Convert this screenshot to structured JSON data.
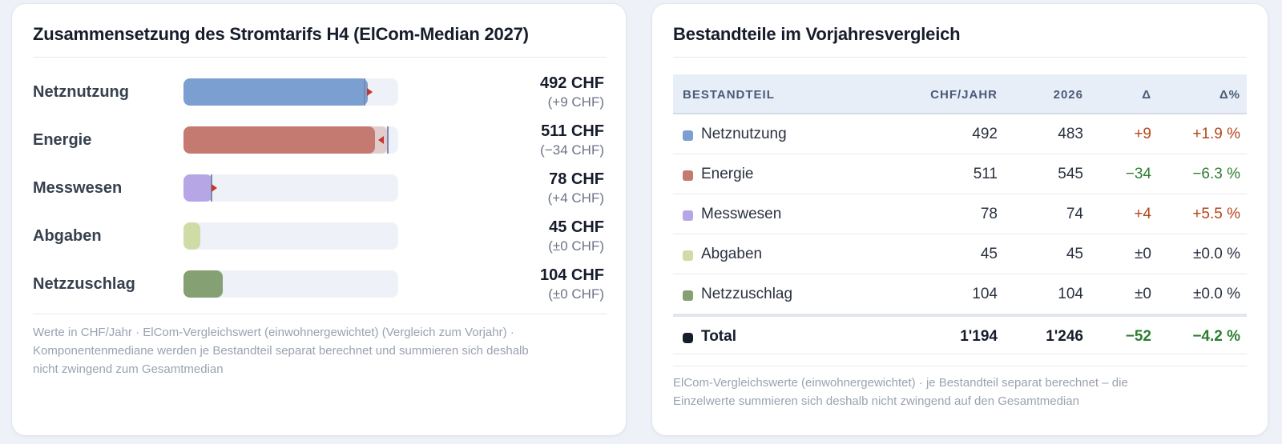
{
  "left": {
    "title": "Zusammensetzung des Stromtarifs H4 (ElCom-Median 2027)",
    "footnote_lines": [
      "Werte in CHF/Jahr · ElCom-Vergleichswert (einwohnergewichtet) (Vergleich zum Vorjahr) ·",
      "Komponentenmediane werden je Bestandteil separat berechnet und summieren sich deshalb",
      "nicht zwingend zum Gesamtmedian"
    ]
  },
  "right": {
    "title": "Bestandteile im Vorjahresvergleich",
    "headers": [
      "BESTANDTEIL",
      "CHF/JAHR",
      "2026",
      "Δ",
      "Δ%"
    ],
    "footnote_lines": [
      "ElCom-Vergleichswerte (einwohnergewichtet) · je Bestandteil separat berechnet – die",
      "Einzelwerte summieren sich deshalb nicht zwingend auf den Gesamtmedian"
    ],
    "total": {
      "label": "Total",
      "value": "1'194",
      "prev": "1'246",
      "delta": "−52",
      "delta_pct": "−4.2 %",
      "swatch": "#161c2b"
    }
  },
  "chart_data": {
    "type": "bar",
    "orientation": "horizontal",
    "unit": "CHF",
    "xlim": [
      0,
      560
    ],
    "categories": [
      "Netznutzung",
      "Energie",
      "Messwesen",
      "Abgaben",
      "Netzzuschlag"
    ],
    "values": [
      492,
      511,
      78,
      45,
      104
    ],
    "previous_values": [
      483,
      545,
      74,
      45,
      104
    ],
    "value_labels": [
      "492 CHF",
      "511 CHF",
      "78 CHF",
      "45 CHF",
      "104 CHF"
    ],
    "delta_labels": [
      "(+9 CHF)",
      "(−34 CHF)",
      "(+4 CHF)",
      "(±0 CHF)",
      "(±0 CHF)"
    ],
    "table_values": [
      "492",
      "511",
      "78",
      "45",
      "104"
    ],
    "table_prev": [
      "483",
      "545",
      "74",
      "45",
      "104"
    ],
    "table_delta": [
      "+9",
      "−34",
      "+4",
      "±0",
      "±0"
    ],
    "table_delta_pct": [
      "+1.9 %",
      "−6.3 %",
      "+5.5 %",
      "±0.0 %",
      "±0.0 %"
    ],
    "colors": [
      "#7a9fd0",
      "#c47a70",
      "#b6a6e6",
      "#cfdca6",
      "#85a072"
    ],
    "delta_colors": {
      "up": "#b5451b",
      "down": "#2e7d32",
      "neutral": "#2a3140"
    }
  }
}
